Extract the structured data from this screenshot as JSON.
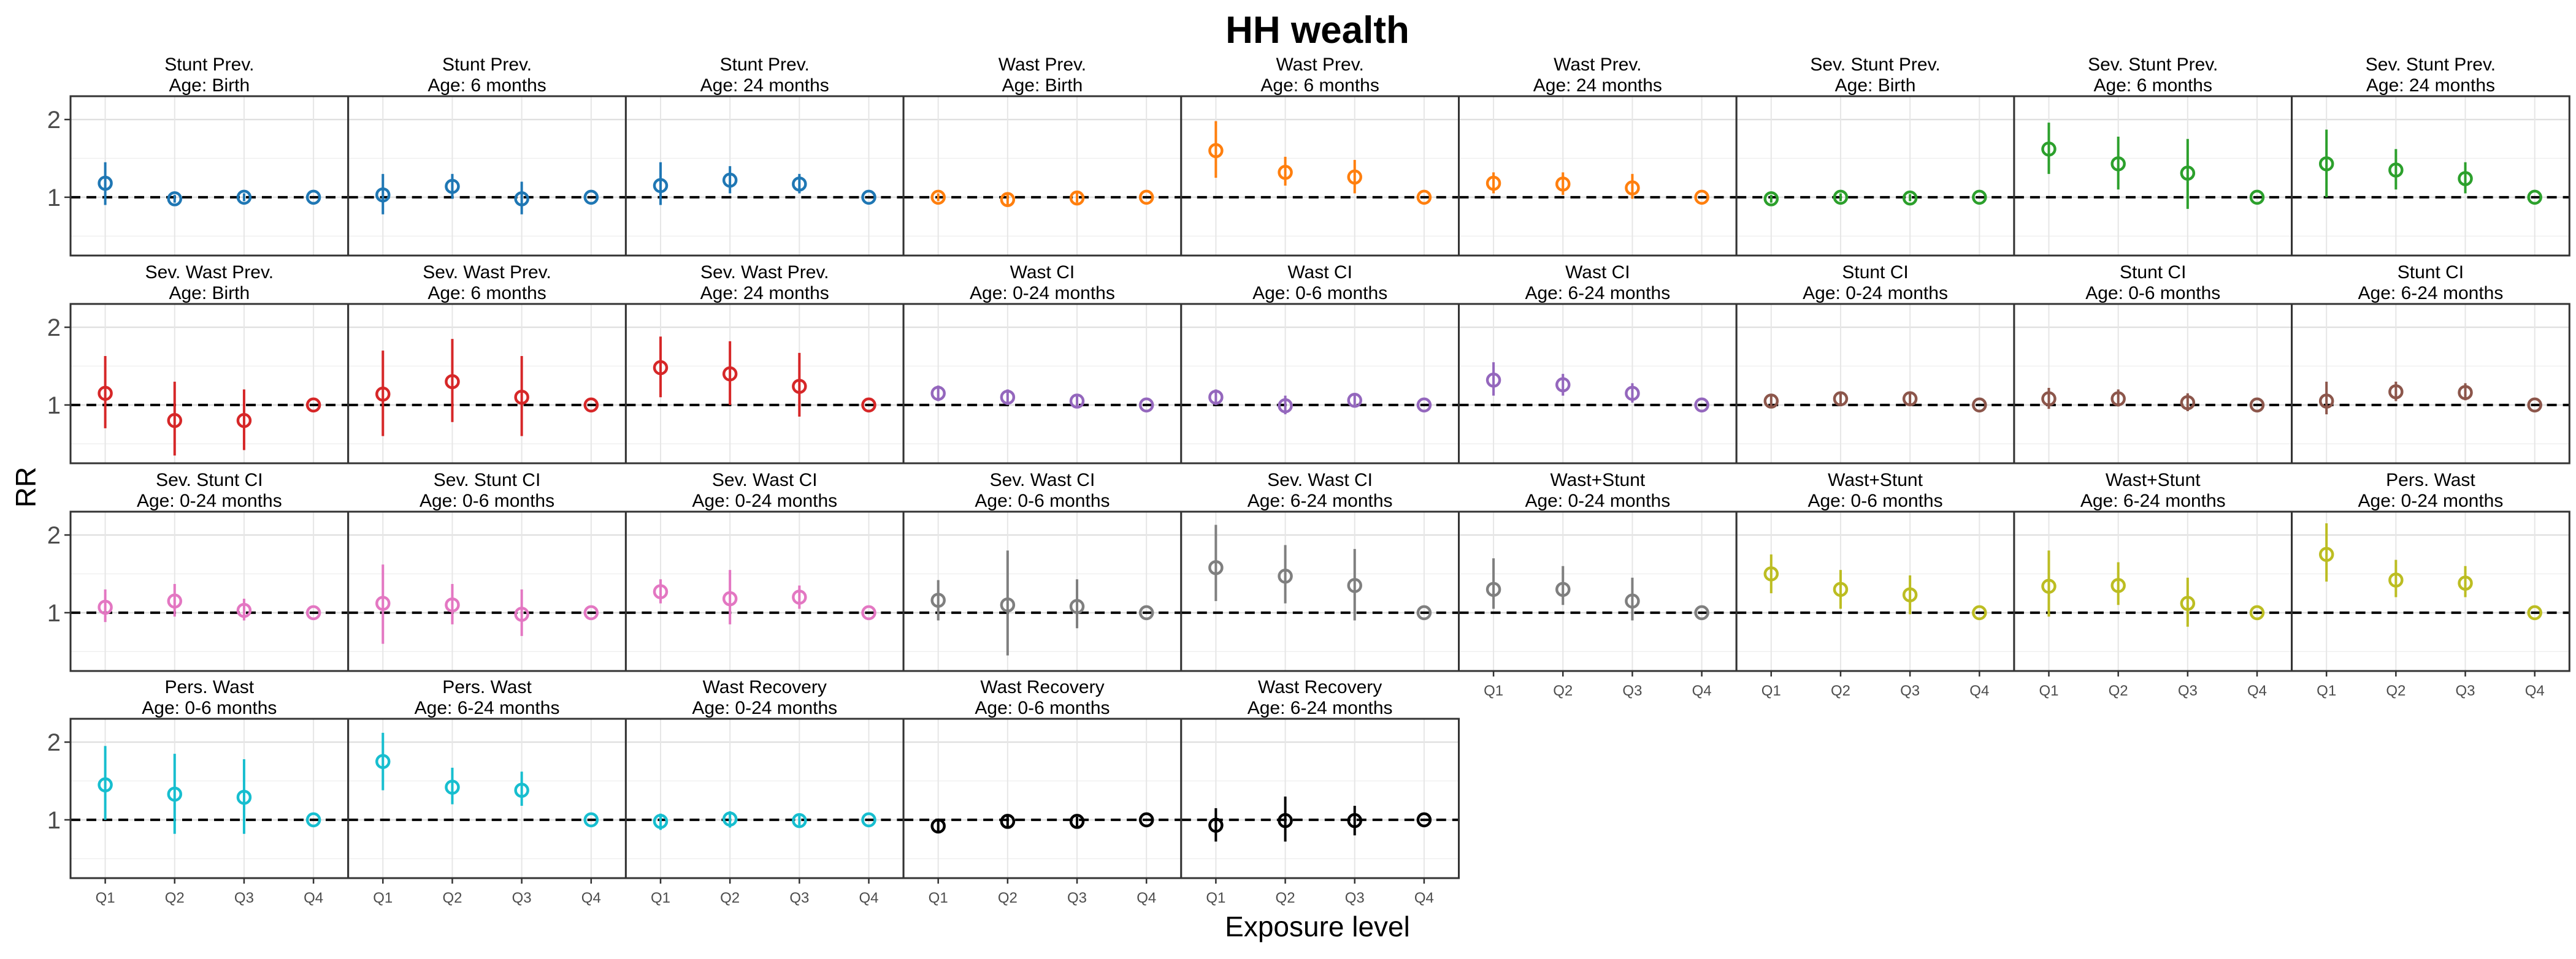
{
  "chart_data": {
    "type": "scatter",
    "title": "HH wealth",
    "xlabel": "Exposure level",
    "ylabel": "RR",
    "categories": [
      "Q1",
      "Q2",
      "Q3",
      "Q4"
    ],
    "yticks": [
      1,
      2
    ],
    "ylim": [
      0.25,
      2.3
    ],
    "reference_line": 1,
    "panels": [
      {
        "title": "Stunt Prev.",
        "age": "Age: Birth",
        "color": "#1f77b4",
        "est": [
          1.18,
          0.98,
          1.0,
          1.0
        ],
        "lo": [
          0.9,
          0.93,
          0.95,
          1.0
        ],
        "hi": [
          1.45,
          1.03,
          1.05,
          1.0
        ]
      },
      {
        "title": "Stunt Prev.",
        "age": "Age: 6 months",
        "color": "#1f77b4",
        "est": [
          1.03,
          1.14,
          0.98,
          1.0
        ],
        "lo": [
          0.78,
          0.98,
          0.78,
          1.0
        ],
        "hi": [
          1.3,
          1.3,
          1.2,
          1.0
        ]
      },
      {
        "title": "Stunt Prev.",
        "age": "Age: 24 months",
        "color": "#1f77b4",
        "est": [
          1.15,
          1.22,
          1.17,
          1.0
        ],
        "lo": [
          0.9,
          1.05,
          1.05,
          1.0
        ],
        "hi": [
          1.45,
          1.4,
          1.3,
          1.0
        ]
      },
      {
        "title": "Wast Prev.",
        "age": "Age: Birth",
        "color": "#ff7f0e",
        "est": [
          1.0,
          0.97,
          0.99,
          1.0
        ],
        "lo": [
          0.95,
          0.9,
          0.93,
          1.0
        ],
        "hi": [
          1.05,
          1.05,
          1.06,
          1.0
        ]
      },
      {
        "title": "Wast Prev.",
        "age": "Age: 6 months",
        "color": "#ff7f0e",
        "est": [
          1.6,
          1.32,
          1.26,
          1.0
        ],
        "lo": [
          1.25,
          1.15,
          1.05,
          1.0
        ],
        "hi": [
          1.98,
          1.52,
          1.48,
          1.0
        ]
      },
      {
        "title": "Wast Prev.",
        "age": "Age: 24 months",
        "color": "#ff7f0e",
        "est": [
          1.18,
          1.17,
          1.12,
          1.0
        ],
        "lo": [
          1.05,
          1.03,
          0.98,
          1.0
        ],
        "hi": [
          1.32,
          1.32,
          1.3,
          1.0
        ]
      },
      {
        "title": "Sev. Stunt Prev.",
        "age": "Age: Birth",
        "color": "#2ca02c",
        "est": [
          0.98,
          1.0,
          0.99,
          1.0
        ],
        "lo": [
          0.93,
          0.95,
          0.95,
          1.0
        ],
        "hi": [
          1.03,
          1.05,
          1.04,
          1.0
        ]
      },
      {
        "title": "Sev. Stunt Prev.",
        "age": "Age: 6 months",
        "color": "#2ca02c",
        "est": [
          1.62,
          1.43,
          1.31,
          1.0
        ],
        "lo": [
          1.3,
          1.1,
          0.85,
          1.0
        ],
        "hi": [
          1.96,
          1.78,
          1.75,
          1.0
        ]
      },
      {
        "title": "Sev. Stunt Prev.",
        "age": "Age: 24 months",
        "color": "#2ca02c",
        "est": [
          1.43,
          1.35,
          1.24,
          1.0
        ],
        "lo": [
          1.0,
          1.1,
          1.05,
          1.0
        ],
        "hi": [
          1.87,
          1.62,
          1.45,
          1.0
        ]
      },
      {
        "title": "Sev. Wast Prev.",
        "age": "Age: Birth",
        "color": "#d62728",
        "est": [
          1.15,
          0.8,
          0.8,
          1.0
        ],
        "lo": [
          0.7,
          0.35,
          0.42,
          1.0
        ],
        "hi": [
          1.63,
          1.3,
          1.2,
          1.0
        ]
      },
      {
        "title": "Sev. Wast Prev.",
        "age": "Age: 6 months",
        "color": "#d62728",
        "est": [
          1.14,
          1.3,
          1.1,
          1.0
        ],
        "lo": [
          0.6,
          0.78,
          0.6,
          1.0
        ],
        "hi": [
          1.7,
          1.85,
          1.63,
          1.0
        ]
      },
      {
        "title": "Sev. Wast Prev.",
        "age": "Age: 24 months",
        "color": "#d62728",
        "est": [
          1.48,
          1.4,
          1.24,
          1.0
        ],
        "lo": [
          1.1,
          1.0,
          0.85,
          1.0
        ],
        "hi": [
          1.88,
          1.82,
          1.67,
          1.0
        ]
      },
      {
        "title": "Wast CI",
        "age": "Age: 0-24 months",
        "color": "#9467bd",
        "est": [
          1.15,
          1.1,
          1.05,
          1.0
        ],
        "lo": [
          1.05,
          1.0,
          0.97,
          1.0
        ],
        "hi": [
          1.25,
          1.2,
          1.12,
          1.0
        ]
      },
      {
        "title": "Wast CI",
        "age": "Age: 0-6 months",
        "color": "#9467bd",
        "est": [
          1.1,
          0.99,
          1.06,
          1.0
        ],
        "lo": [
          1.0,
          0.88,
          0.98,
          1.0
        ],
        "hi": [
          1.2,
          1.12,
          1.13,
          1.0
        ]
      },
      {
        "title": "Wast CI",
        "age": "Age: 6-24 months",
        "color": "#9467bd",
        "est": [
          1.32,
          1.26,
          1.15,
          1.0
        ],
        "lo": [
          1.12,
          1.12,
          1.03,
          1.0
        ],
        "hi": [
          1.55,
          1.4,
          1.28,
          1.0
        ]
      },
      {
        "title": "Stunt CI",
        "age": "Age: 0-24 months",
        "color": "#8c564b",
        "est": [
          1.05,
          1.08,
          1.08,
          1.0
        ],
        "lo": [
          0.97,
          1.0,
          1.0,
          1.0
        ],
        "hi": [
          1.13,
          1.17,
          1.17,
          1.0
        ]
      },
      {
        "title": "Stunt CI",
        "age": "Age: 0-6 months",
        "color": "#8c564b",
        "est": [
          1.08,
          1.08,
          1.03,
          1.0
        ],
        "lo": [
          0.95,
          0.98,
          0.92,
          1.0
        ],
        "hi": [
          1.22,
          1.2,
          1.15,
          1.0
        ]
      },
      {
        "title": "Stunt CI",
        "age": "Age: 6-24 months",
        "color": "#8c564b",
        "est": [
          1.05,
          1.17,
          1.16,
          1.0
        ],
        "lo": [
          0.88,
          1.05,
          1.06,
          1.0
        ],
        "hi": [
          1.3,
          1.3,
          1.28,
          1.0
        ]
      },
      {
        "title": "Sev. Stunt CI",
        "age": "Age: 0-24 months",
        "color": "#e377c2",
        "est": [
          1.07,
          1.15,
          1.03,
          1.0
        ],
        "lo": [
          0.88,
          0.95,
          0.9,
          1.0
        ],
        "hi": [
          1.3,
          1.37,
          1.18,
          1.0
        ]
      },
      {
        "title": "Sev. Stunt CI",
        "age": "Age: 0-6 months",
        "color": "#e377c2",
        "est": [
          1.12,
          1.1,
          0.98,
          1.0
        ],
        "lo": [
          0.6,
          0.85,
          0.7,
          1.0
        ],
        "hi": [
          1.62,
          1.37,
          1.3,
          1.0
        ]
      },
      {
        "title": "Sev. Wast CI",
        "age": "Age: 0-24 months",
        "color": "#e377c2",
        "est": [
          1.27,
          1.18,
          1.2,
          1.0
        ],
        "lo": [
          1.12,
          0.85,
          1.05,
          1.0
        ],
        "hi": [
          1.43,
          1.55,
          1.35,
          1.0
        ]
      },
      {
        "title": "Sev. Wast CI",
        "age": "Age: 0-6 months",
        "color": "#7f7f7f",
        "est": [
          1.16,
          1.1,
          1.08,
          1.0
        ],
        "lo": [
          0.9,
          0.45,
          0.8,
          1.0
        ],
        "hi": [
          1.42,
          1.8,
          1.43,
          1.0
        ]
      },
      {
        "title": "Sev. Wast CI",
        "age": "Age: 6-24 months",
        "color": "#7f7f7f",
        "est": [
          1.58,
          1.47,
          1.35,
          1.0
        ],
        "lo": [
          1.15,
          1.12,
          0.9,
          1.0
        ],
        "hi": [
          2.13,
          1.87,
          1.82,
          1.0
        ]
      },
      {
        "title": "Wast+Stunt",
        "age": "Age: 0-24 months",
        "color": "#7f7f7f",
        "est": [
          1.3,
          1.3,
          1.15,
          1.0
        ],
        "lo": [
          1.05,
          1.1,
          0.9,
          1.0
        ],
        "hi": [
          1.7,
          1.6,
          1.45,
          1.0
        ]
      },
      {
        "title": "Wast+Stunt",
        "age": "Age: 0-6 months",
        "color": "#bcbd22",
        "est": [
          1.5,
          1.3,
          1.23,
          1.0
        ],
        "lo": [
          1.25,
          1.05,
          0.98,
          1.0
        ],
        "hi": [
          1.75,
          1.55,
          1.48,
          1.0
        ]
      },
      {
        "title": "Wast+Stunt",
        "age": "Age: 6-24 months",
        "color": "#bcbd22",
        "est": [
          1.34,
          1.35,
          1.12,
          1.0
        ],
        "lo": [
          0.95,
          1.1,
          0.82,
          1.0
        ],
        "hi": [
          1.8,
          1.65,
          1.45,
          1.0
        ]
      },
      {
        "title": "Pers. Wast",
        "age": "Age: 0-24 months",
        "color": "#bcbd22",
        "est": [
          1.75,
          1.42,
          1.38,
          1.0
        ],
        "lo": [
          1.4,
          1.2,
          1.2,
          1.0
        ],
        "hi": [
          2.15,
          1.68,
          1.6,
          1.0
        ]
      },
      {
        "title": "Pers. Wast",
        "age": "Age: 0-6 months",
        "color": "#17becf",
        "est": [
          1.45,
          1.33,
          1.29,
          1.0
        ],
        "lo": [
          1.0,
          0.82,
          0.82,
          1.0
        ],
        "hi": [
          1.95,
          1.85,
          1.78,
          1.0
        ]
      },
      {
        "title": "Pers. Wast",
        "age": "Age: 6-24 months",
        "color": "#17becf",
        "est": [
          1.75,
          1.42,
          1.38,
          1.0
        ],
        "lo": [
          1.38,
          1.2,
          1.18,
          1.0
        ],
        "hi": [
          2.12,
          1.67,
          1.62,
          1.0
        ]
      },
      {
        "title": "Wast Recovery",
        "age": "Age: 0-24 months",
        "color": "#17becf",
        "est": [
          0.98,
          1.01,
          0.99,
          1.0
        ],
        "lo": [
          0.87,
          0.9,
          0.93,
          1.0
        ],
        "hi": [
          1.08,
          1.11,
          1.05,
          1.0
        ]
      },
      {
        "title": "Wast Recovery",
        "age": "Age: 0-6 months",
        "color": "#000000",
        "est": [
          0.92,
          0.98,
          0.98,
          1.0
        ],
        "lo": [
          0.85,
          0.9,
          0.92,
          1.0
        ],
        "hi": [
          1.0,
          1.06,
          1.04,
          1.0
        ]
      },
      {
        "title": "Wast Recovery",
        "age": "Age: 6-24 months",
        "color": "#000000",
        "est": [
          0.93,
          0.99,
          0.99,
          1.0
        ],
        "lo": [
          0.72,
          0.72,
          0.8,
          1.0
        ],
        "hi": [
          1.15,
          1.3,
          1.18,
          1.0
        ]
      }
    ]
  }
}
